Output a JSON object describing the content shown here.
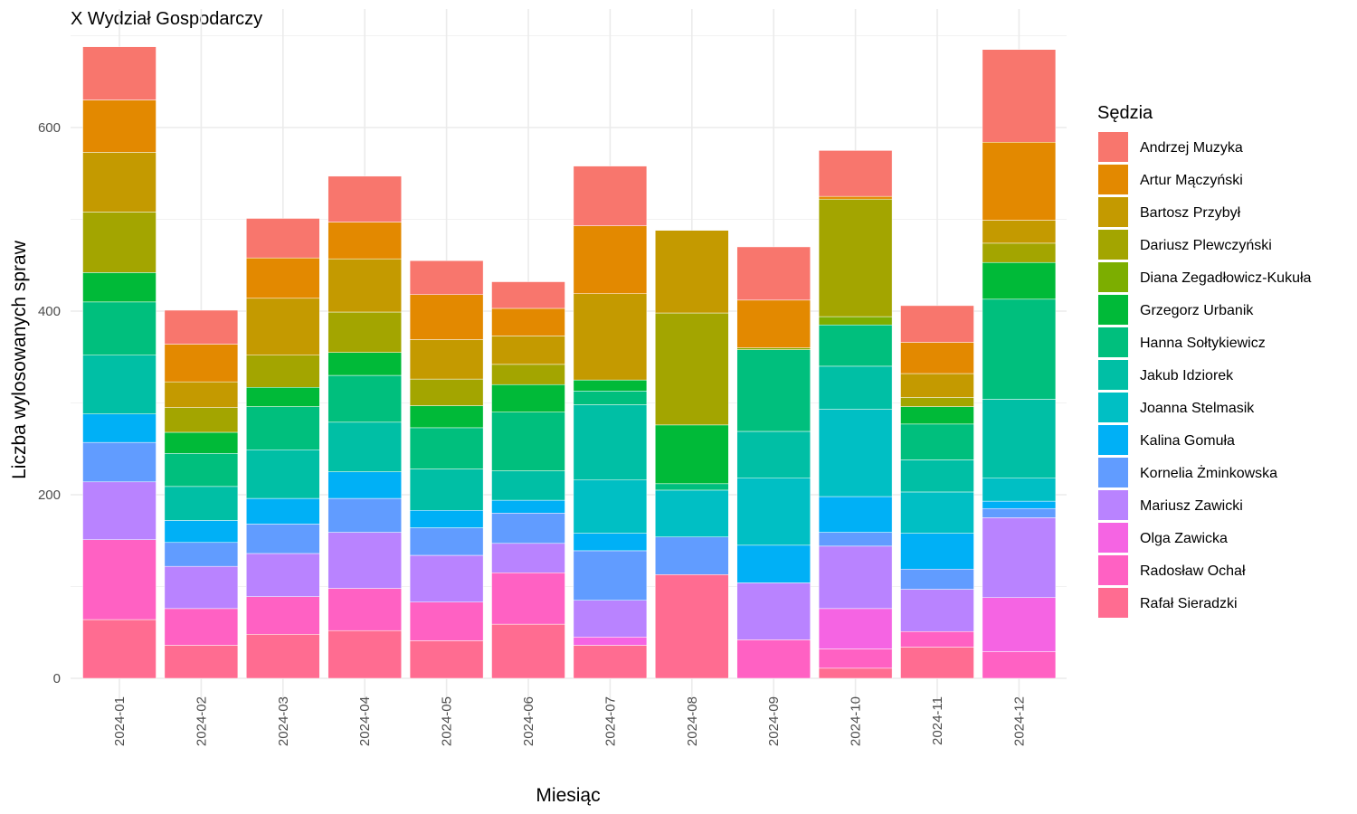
{
  "chart_data": {
    "type": "bar",
    "stacked": true,
    "title": "X Wydział Gospodarczy",
    "xlabel": "Miesiąc",
    "ylabel": "Liczba wylosowanych spraw",
    "legend_title": "Sędzia",
    "legend_position": "right",
    "grid": true,
    "ylim": [
      0,
      700
    ],
    "yticks": [
      0,
      200,
      400,
      600
    ],
    "categories": [
      "2024-01",
      "2024-02",
      "2024-03",
      "2024-04",
      "2024-05",
      "2024-06",
      "2024-07",
      "2024-08",
      "2024-09",
      "2024-10",
      "2024-11",
      "2024-12"
    ],
    "series": [
      {
        "name": "Rafał Sieradzki",
        "color": "#FF6C91",
        "values": [
          64,
          36,
          48,
          52,
          41,
          59,
          36,
          113,
          0,
          11,
          34,
          0
        ]
      },
      {
        "name": "Radosław Ochał",
        "color": "#FF61C3",
        "values": [
          87,
          40,
          41,
          46,
          42,
          56,
          0,
          0,
          42,
          21,
          17,
          29
        ]
      },
      {
        "name": "Olga Zawicka",
        "color": "#F564E3",
        "values": [
          0,
          0,
          0,
          0,
          0,
          0,
          9,
          0,
          0,
          44,
          0,
          59
        ]
      },
      {
        "name": "Mariusz Zawicki",
        "color": "#B983FF",
        "values": [
          63,
          46,
          47,
          61,
          51,
          32,
          40,
          0,
          62,
          68,
          46,
          87
        ]
      },
      {
        "name": "Kornelia Żminkowska",
        "color": "#619CFF",
        "values": [
          43,
          26,
          32,
          37,
          30,
          33,
          54,
          41,
          0,
          15,
          22,
          10
        ]
      },
      {
        "name": "Kalina Gomuła",
        "color": "#00B0F6",
        "values": [
          31,
          24,
          28,
          29,
          19,
          14,
          19,
          0,
          41,
          39,
          39,
          8
        ]
      },
      {
        "name": "Joanna Stelmasik",
        "color": "#00BFC4",
        "values": [
          0,
          0,
          0,
          0,
          0,
          0,
          58,
          51,
          73,
          95,
          45,
          25
        ]
      },
      {
        "name": "Jakub Idziorek",
        "color": "#00BFA5",
        "values": [
          64,
          37,
          53,
          54,
          45,
          32,
          82,
          0,
          51,
          47,
          35,
          86
        ]
      },
      {
        "name": "Hanna Sołtykiewicz",
        "color": "#00BF7D",
        "values": [
          58,
          36,
          47,
          51,
          45,
          64,
          15,
          7,
          89,
          45,
          39,
          109
        ]
      },
      {
        "name": "Grzegorz Urbanik",
        "color": "#00BA38",
        "values": [
          32,
          23,
          21,
          25,
          24,
          30,
          12,
          64,
          0,
          0,
          19,
          40
        ]
      },
      {
        "name": "Diana Zegadłowicz-Kukuła",
        "color": "#7CAE00",
        "values": [
          0,
          0,
          0,
          0,
          0,
          0,
          0,
          0,
          2,
          9,
          0,
          0
        ]
      },
      {
        "name": "Dariusz Plewczyński",
        "color": "#A3A500",
        "values": [
          66,
          27,
          35,
          44,
          29,
          22,
          0,
          122,
          0,
          128,
          10,
          21
        ]
      },
      {
        "name": "Bartosz Przybył",
        "color": "#C49A00",
        "values": [
          65,
          28,
          62,
          58,
          43,
          31,
          94,
          90,
          0,
          0,
          26,
          25
        ]
      },
      {
        "name": "Artur Mączyński",
        "color": "#E38900",
        "values": [
          57,
          41,
          44,
          40,
          49,
          30,
          74,
          0,
          52,
          3,
          34,
          85
        ]
      },
      {
        "name": "Andrzej Muzyka",
        "color": "#F8766D",
        "values": [
          58,
          37,
          43,
          50,
          37,
          29,
          65,
          0,
          58,
          50,
          40,
          101
        ]
      }
    ]
  }
}
